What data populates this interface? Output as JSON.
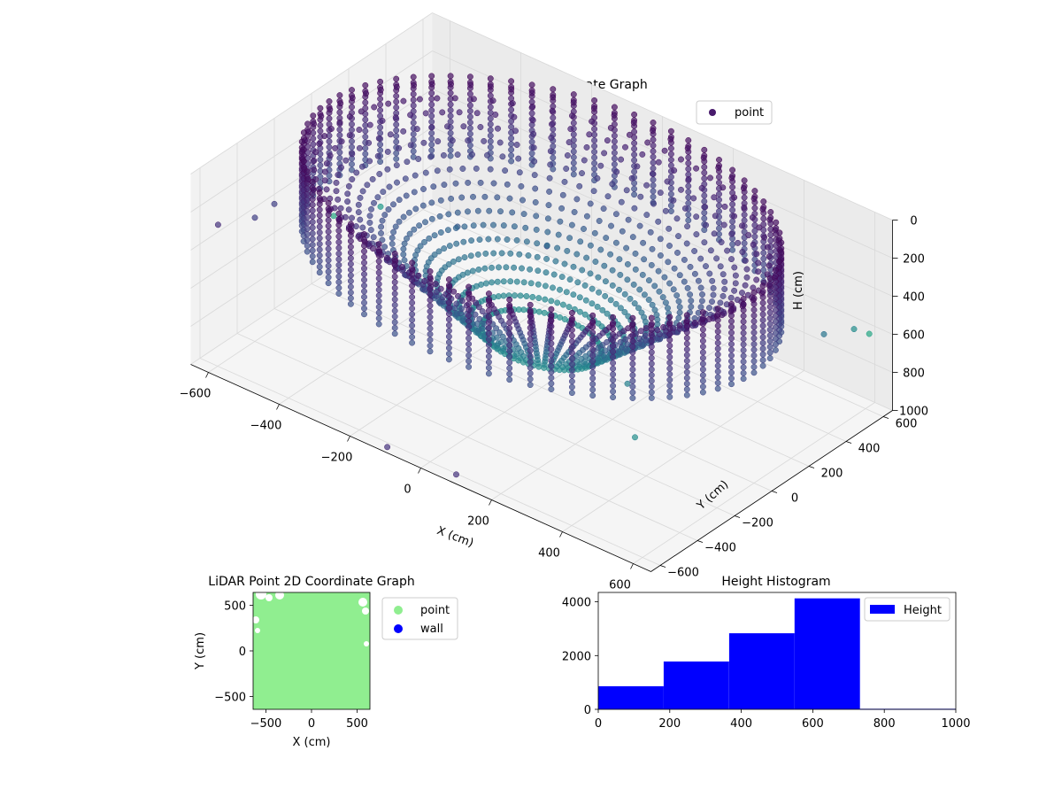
{
  "colors": {
    "viridis_low": "#440154",
    "viridis_mid": "#31688e",
    "viridis_teal": "#35b779",
    "point_2d": "#90ee90",
    "wall_2d": "#0000ff",
    "histogram_bar": "#0000ff",
    "pane_fill": "#f2f2f2",
    "grid": "#d9d9d9"
  },
  "chart_data": [
    {
      "type": "scatter",
      "title": "LiDAR Point 3D Coordinate Graph",
      "xlabel": "X (cm)",
      "ylabel": "Y (cm)",
      "zlabel": "H (cm)",
      "xlim": [
        -650,
        650
      ],
      "ylim": [
        -650,
        650
      ],
      "zlim": [
        1000,
        0
      ],
      "x_ticks": [
        -600,
        -400,
        -200,
        0,
        200,
        400,
        600
      ],
      "y_ticks": [
        -600,
        -400,
        -200,
        0,
        200,
        400,
        600
      ],
      "z_ticks": [
        0,
        200,
        400,
        600,
        800,
        1000
      ],
      "colormap": "viridis",
      "grid": true,
      "legend": {
        "placement": "upper right",
        "entries": [
          "point"
        ]
      },
      "shape": {
        "description_values": true,
        "outer_radius": 600,
        "inner_radius": 150,
        "rim_height": 0,
        "floor_height": 750
      },
      "outliers": [
        {
          "x": -620,
          "y": -560,
          "h": 300,
          "level": 0.15
        },
        {
          "x": -600,
          "y": -400,
          "h": 350,
          "level": 0.2
        },
        {
          "x": -560,
          "y": 200,
          "h": 650,
          "level": 0.55
        },
        {
          "x": -640,
          "y": 100,
          "h": 700,
          "level": 0.6
        },
        {
          "x": -650,
          "y": -200,
          "h": 450,
          "level": 0.2
        },
        {
          "x": -500,
          "y": 500,
          "h": 900,
          "level": 0.3
        },
        {
          "x": -300,
          "y": 600,
          "h": 900,
          "level": 0.25
        },
        {
          "x": 600,
          "y": 620,
          "h": 620,
          "level": 0.6
        },
        {
          "x": 620,
          "y": 500,
          "h": 500,
          "level": 0.5
        },
        {
          "x": 640,
          "y": 300,
          "h": 380,
          "level": 0.4
        },
        {
          "x": 100,
          "y": -650,
          "h": 950,
          "level": 0.15
        },
        {
          "x": -100,
          "y": -640,
          "h": 980,
          "level": 0.15
        },
        {
          "x": 400,
          "y": -300,
          "h": 450,
          "level": 0.45
        },
        {
          "x": 500,
          "y": -450,
          "h": 550,
          "level": 0.5
        }
      ]
    },
    {
      "type": "scatter",
      "title": "LiDAR Point 2D Coordinate Graph",
      "xlabel": "X (cm)",
      "ylabel": "Y (cm)",
      "xlim": [
        -640,
        640
      ],
      "ylim": [
        -640,
        640
      ],
      "x_ticks": [
        -500,
        0,
        500
      ],
      "y_ticks": [
        -500,
        0,
        500
      ],
      "legend": {
        "placement": "outside right",
        "entries": [
          "point",
          "wall"
        ]
      },
      "wall_points": 0,
      "fill_note": "dense point cloud fills almost entire area"
    },
    {
      "type": "bar",
      "title": "Height Histogram",
      "xlabel": "",
      "ylabel": "",
      "xlim": [
        0,
        1000
      ],
      "ylim": [
        0,
        4350
      ],
      "x_ticks": [
        0,
        200,
        400,
        600,
        800,
        1000
      ],
      "y_ticks": [
        0,
        2000,
        4000
      ],
      "legend": {
        "placement": "upper right",
        "entries": [
          "Height"
        ]
      },
      "bins": [
        {
          "start": 0,
          "end": 183,
          "count": 860
        },
        {
          "start": 183,
          "end": 366,
          "count": 1780
        },
        {
          "start": 366,
          "end": 549,
          "count": 2830
        },
        {
          "start": 549,
          "end": 732,
          "count": 4130
        },
        {
          "start": 732,
          "end": 1000,
          "count": 20
        }
      ]
    }
  ]
}
